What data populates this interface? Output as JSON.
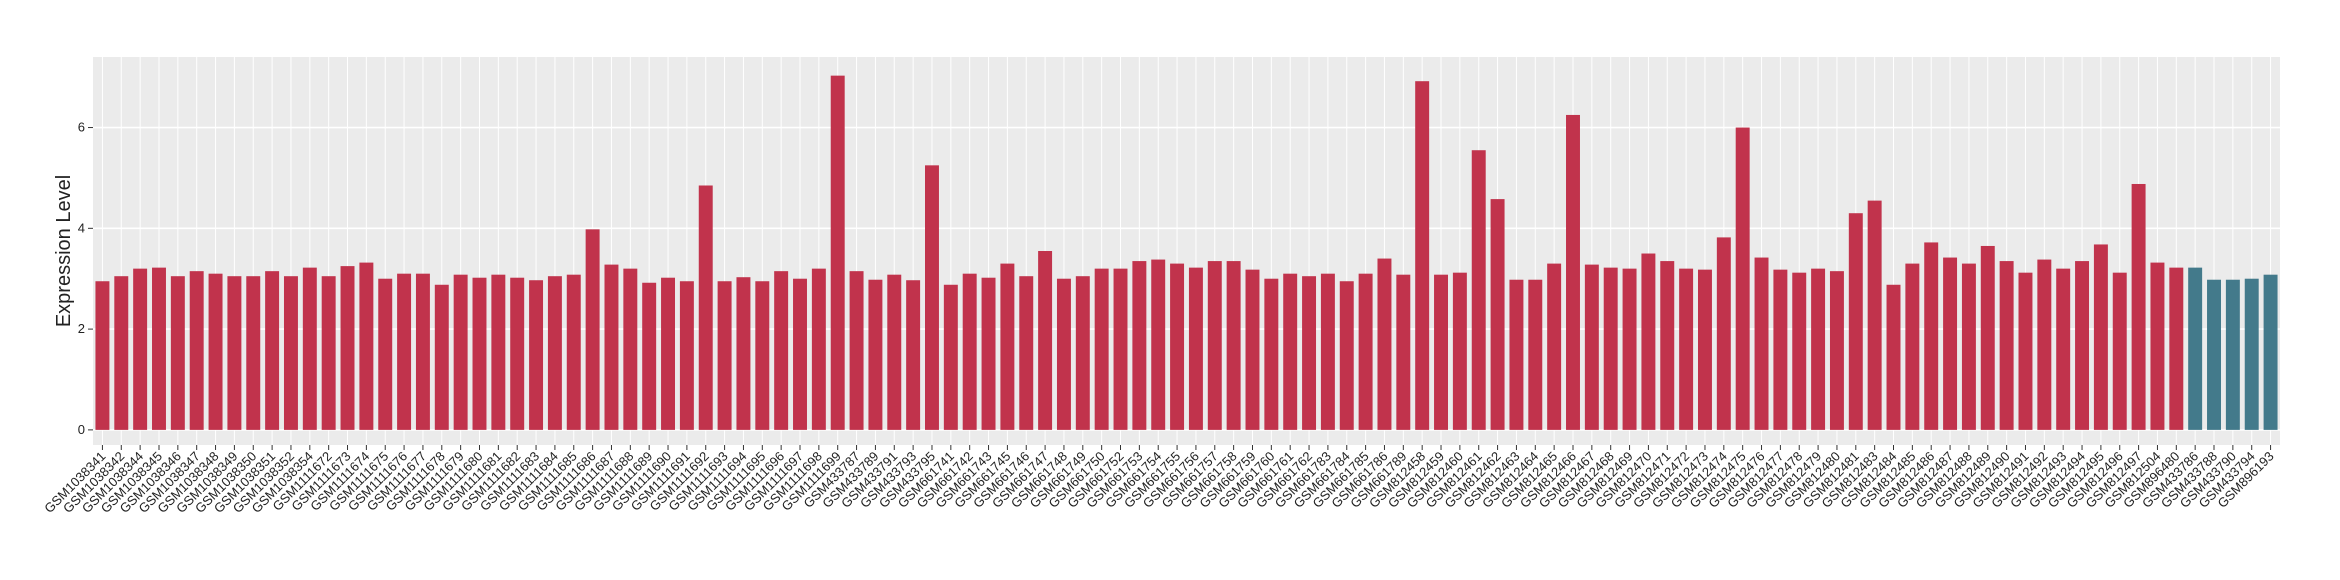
{
  "chart_data": {
    "type": "bar",
    "y_label": "Expression Level",
    "categories": [
      "GSM1038341",
      "GSM1038342",
      "GSM1038344",
      "GSM1038345",
      "GSM1038346",
      "GSM1038347",
      "GSM1038348",
      "GSM1038349",
      "GSM1038350",
      "GSM1038351",
      "GSM1038352",
      "GSM1038354",
      "GSM1111672",
      "GSM1111673",
      "GSM1111674",
      "GSM1111675",
      "GSM1111676",
      "GSM1111677",
      "GSM1111678",
      "GSM1111679",
      "GSM1111680",
      "GSM1111681",
      "GSM1111682",
      "GSM1111683",
      "GSM1111684",
      "GSM1111685",
      "GSM1111686",
      "GSM1111687",
      "GSM1111688",
      "GSM1111689",
      "GSM1111690",
      "GSM1111691",
      "GSM1111692",
      "GSM1111693",
      "GSM1111694",
      "GSM1111695",
      "GSM1111696",
      "GSM1111697",
      "GSM1111698",
      "GSM1111699",
      "GSM433787",
      "GSM433789",
      "GSM433791",
      "GSM433793",
      "GSM433795",
      "GSM661741",
      "GSM661742",
      "GSM661743",
      "GSM661745",
      "GSM661746",
      "GSM661747",
      "GSM661748",
      "GSM661749",
      "GSM661750",
      "GSM661752",
      "GSM661753",
      "GSM661754",
      "GSM661755",
      "GSM661756",
      "GSM661757",
      "GSM661758",
      "GSM661759",
      "GSM661760",
      "GSM661761",
      "GSM661762",
      "GSM661783",
      "GSM661784",
      "GSM661785",
      "GSM661786",
      "GSM661789",
      "GSM812458",
      "GSM812459",
      "GSM812460",
      "GSM812461",
      "GSM812462",
      "GSM812463",
      "GSM812464",
      "GSM812465",
      "GSM812466",
      "GSM812467",
      "GSM812468",
      "GSM812469",
      "GSM812470",
      "GSM812471",
      "GSM812472",
      "GSM812473",
      "GSM812474",
      "GSM812475",
      "GSM812476",
      "GSM812477",
      "GSM812478",
      "GSM812479",
      "GSM812480",
      "GSM812481",
      "GSM812483",
      "GSM812484",
      "GSM812485",
      "GSM812486",
      "GSM812487",
      "GSM812488",
      "GSM812489",
      "GSM812490",
      "GSM812491",
      "GSM812492",
      "GSM812493",
      "GSM812494",
      "GSM812495",
      "GSM812496",
      "GSM812497",
      "GSM812504",
      "GSM896480",
      "GSM433786",
      "GSM433788",
      "GSM433790",
      "GSM433794",
      "GSM896193"
    ],
    "values": [
      2.95,
      3.05,
      3.2,
      3.22,
      3.05,
      3.15,
      3.1,
      3.05,
      3.05,
      3.15,
      3.05,
      3.22,
      3.05,
      3.25,
      3.32,
      3.0,
      3.1,
      3.1,
      2.88,
      3.08,
      3.02,
      3.08,
      3.02,
      2.97,
      3.05,
      3.08,
      3.98,
      3.28,
      3.2,
      2.92,
      3.02,
      2.95,
      4.85,
      2.95,
      3.03,
      2.95,
      3.15,
      3.0,
      3.2,
      7.03,
      3.15,
      2.98,
      3.08,
      2.97,
      5.25,
      2.88,
      3.1,
      3.02,
      3.3,
      3.05,
      3.55,
      3.0,
      3.05,
      3.2,
      3.2,
      3.35,
      3.38,
      3.3,
      3.22,
      3.35,
      3.35,
      3.18,
      3.0,
      3.1,
      3.05,
      3.1,
      2.95,
      3.1,
      3.4,
      3.08,
      6.92,
      3.08,
      3.12,
      5.55,
      4.58,
      2.98,
      2.98,
      3.3,
      6.25,
      3.28,
      3.22,
      3.2,
      3.5,
      3.35,
      3.2,
      3.18,
      3.82,
      6.0,
      3.42,
      3.18,
      3.12,
      3.2,
      3.15,
      4.3,
      4.55,
      2.88,
      3.3,
      3.72,
      3.42,
      3.3,
      3.65,
      3.35,
      3.12,
      3.38,
      3.2,
      3.35,
      3.68,
      3.12,
      4.88,
      3.32,
      3.22,
      3.22,
      2.98,
      2.98,
      3.0,
      3.08
    ],
    "colors": [
      "#c1334c",
      "#c1334c",
      "#c1334c",
      "#c1334c",
      "#c1334c",
      "#c1334c",
      "#c1334c",
      "#c1334c",
      "#c1334c",
      "#c1334c",
      "#c1334c",
      "#c1334c",
      "#c1334c",
      "#c1334c",
      "#c1334c",
      "#c1334c",
      "#c1334c",
      "#c1334c",
      "#c1334c",
      "#c1334c",
      "#c1334c",
      "#c1334c",
      "#c1334c",
      "#c1334c",
      "#c1334c",
      "#c1334c",
      "#c1334c",
      "#c1334c",
      "#c1334c",
      "#c1334c",
      "#c1334c",
      "#c1334c",
      "#c1334c",
      "#c1334c",
      "#c1334c",
      "#c1334c",
      "#c1334c",
      "#c1334c",
      "#c1334c",
      "#c1334c",
      "#c1334c",
      "#c1334c",
      "#c1334c",
      "#c1334c",
      "#c1334c",
      "#c1334c",
      "#c1334c",
      "#c1334c",
      "#c1334c",
      "#c1334c",
      "#c1334c",
      "#c1334c",
      "#c1334c",
      "#c1334c",
      "#c1334c",
      "#c1334c",
      "#c1334c",
      "#c1334c",
      "#c1334c",
      "#c1334c",
      "#c1334c",
      "#c1334c",
      "#c1334c",
      "#c1334c",
      "#c1334c",
      "#c1334c",
      "#c1334c",
      "#c1334c",
      "#c1334c",
      "#c1334c",
      "#c1334c",
      "#c1334c",
      "#c1334c",
      "#c1334c",
      "#c1334c",
      "#c1334c",
      "#c1334c",
      "#c1334c",
      "#c1334c",
      "#c1334c",
      "#c1334c",
      "#c1334c",
      "#c1334c",
      "#c1334c",
      "#c1334c",
      "#c1334c",
      "#c1334c",
      "#c1334c",
      "#c1334c",
      "#c1334c",
      "#c1334c",
      "#c1334c",
      "#c1334c",
      "#c1334c",
      "#c1334c",
      "#c1334c",
      "#c1334c",
      "#c1334c",
      "#c1334c",
      "#c1334c",
      "#c1334c",
      "#c1334c",
      "#c1334c",
      "#c1334c",
      "#c1334c",
      "#c1334c",
      "#c1334c",
      "#c1334c",
      "#c1334c",
      "#c1334c",
      "#c1334c",
      "#437a8b",
      "#437a8b",
      "#437a8b",
      "#437a8b",
      "#437a8b"
    ],
    "ylim": [
      -0.3,
      7.4
    ],
    "yticks": [
      0,
      2,
      4,
      6
    ],
    "grid": true
  }
}
